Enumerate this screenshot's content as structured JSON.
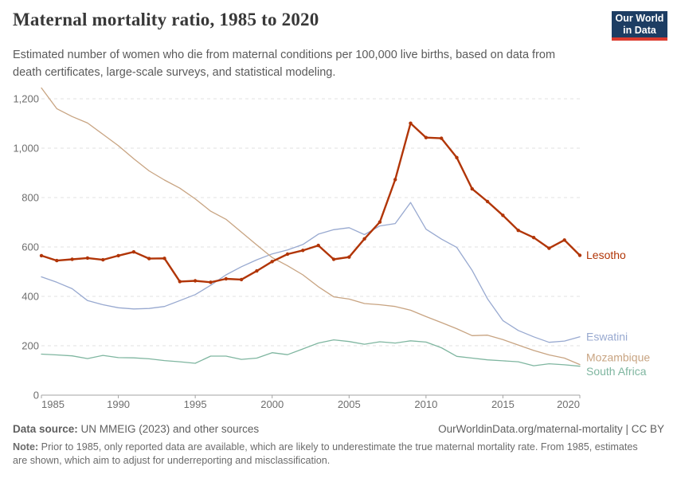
{
  "header": {
    "title": "Maternal mortality ratio, 1985 to 2020",
    "subtitle_line1": "Estimated number of women who die from maternal conditions per 100,000 live births, based on data from",
    "subtitle_line2": "death certificates, large-scale surveys, and statistical modeling."
  },
  "logo": {
    "line1": "Our World",
    "line2": "in Data",
    "bg_color": "#1d3d63",
    "bar_color": "#dc3a2e"
  },
  "chart_data": {
    "type": "line",
    "title": "Maternal mortality ratio, 1985 to 2020",
    "xlabel": "",
    "ylabel": "",
    "x": [
      1985,
      1986,
      1987,
      1988,
      1989,
      1990,
      1991,
      1992,
      1993,
      1994,
      1995,
      1996,
      1997,
      1998,
      1999,
      2000,
      2001,
      2002,
      2003,
      2004,
      2005,
      2006,
      2007,
      2008,
      2009,
      2010,
      2011,
      2012,
      2013,
      2014,
      2015,
      2016,
      2017,
      2018,
      2019,
      2020
    ],
    "series": [
      {
        "name": "Lesotho",
        "color": "#B13507",
        "width": 2.4,
        "markers": true,
        "label_dy": 0,
        "values": [
          565,
          545,
          550,
          555,
          548,
          565,
          580,
          553,
          554,
          460,
          463,
          457,
          471,
          468,
          503,
          541,
          571,
          586,
          606,
          550,
          559,
          633,
          701,
          873,
          1101,
          1043,
          1040,
          962,
          835,
          784,
          728,
          667,
          638,
          595,
          628,
          566
        ]
      },
      {
        "name": "Eswatini",
        "color": "#98A9D0",
        "width": 1.3,
        "markers": false,
        "label_dy": 0,
        "values": [
          479,
          457,
          431,
          383,
          366,
          354,
          349,
          351,
          359,
          383,
          407,
          445,
          487,
          520,
          548,
          572,
          588,
          610,
          652,
          670,
          678,
          650,
          685,
          695,
          780,
          672,
          632,
          598,
          505,
          390,
          302,
          262,
          236,
          214,
          219,
          236
        ]
      },
      {
        "name": "Mozambique",
        "color": "#C8A482",
        "width": 1.3,
        "markers": false,
        "label_dy": -8.5,
        "values": [
          1244,
          1160,
          1128,
          1102,
          1056,
          1010,
          957,
          908,
          871,
          838,
          795,
          745,
          712,
          660,
          608,
          557,
          524,
          487,
          439,
          398,
          389,
          371,
          366,
          359,
          344,
          318,
          294,
          269,
          241,
          243,
          225,
          203,
          181,
          163,
          150,
          124
        ]
      },
      {
        "name": "South Africa",
        "color": "#7FB6A0",
        "width": 1.3,
        "markers": false,
        "label_dy": 7,
        "values": [
          166,
          163,
          159,
          148,
          161,
          152,
          151,
          147,
          140,
          135,
          129,
          158,
          158,
          145,
          150,
          172,
          164,
          187,
          211,
          224,
          217,
          206,
          216,
          211,
          220,
          215,
          192,
          157,
          150,
          143,
          139,
          135,
          119,
          127,
          123,
          117
        ]
      }
    ],
    "ylim": [
      0,
      1200
    ],
    "yticks": {
      "values": [
        0,
        200,
        400,
        600,
        800,
        1000,
        1200
      ],
      "labels": [
        "0",
        "200",
        "400",
        "600",
        "800",
        "1,000",
        "1,200"
      ]
    },
    "xticks": [
      1985,
      1990,
      1995,
      2000,
      2005,
      2010,
      2015,
      2020
    ],
    "grid": "horizontal-dashed",
    "legend_position": "end-of-line-labels"
  },
  "footer": {
    "source_label": "Data source:",
    "source_text": " UN MMEIG (2023) and other sources",
    "link_text": "OurWorldinData.org/maternal-mortality | CC BY",
    "note_label": "Note:",
    "note_line1": " Prior to 1985, only reported data are available, which are likely to underestimate the true maternal mortality rate. From 1985, estimates",
    "note_line2": "are shown, which aim to adjust for underreporting and misclassification."
  }
}
